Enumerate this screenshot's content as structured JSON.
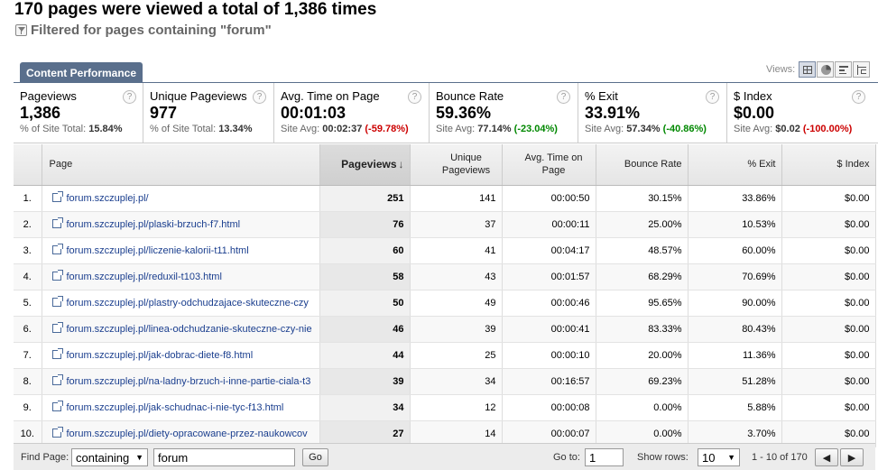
{
  "header": {
    "title": "170 pages were viewed a total of 1,386 times",
    "filter": "Filtered for pages containing \"forum\""
  },
  "tab": {
    "label": "Content Performance"
  },
  "views": {
    "label": "Views:",
    "options": [
      "table-icon",
      "pie-icon",
      "bar-icon",
      "tree-icon"
    ],
    "active": "table-icon"
  },
  "metrics": [
    {
      "name": "Pageviews",
      "value": "1,386",
      "sub_label": "% of Site Total:",
      "sub_value": "15.84%",
      "delta": ""
    },
    {
      "name": "Unique Pageviews",
      "value": "977",
      "sub_label": "% of Site Total:",
      "sub_value": "13.34%",
      "delta": ""
    },
    {
      "name": "Avg. Time on Page",
      "value": "00:01:03",
      "sub_label": "Site Avg:",
      "sub_value": "00:02:37",
      "delta": "(-59.78%)"
    },
    {
      "name": "Bounce Rate",
      "value": "59.36%",
      "sub_label": "Site Avg:",
      "sub_value": "77.14%",
      "delta": "(-23.04%)"
    },
    {
      "name": "% Exit",
      "value": "33.91%",
      "sub_label": "Site Avg:",
      "sub_value": "57.34%",
      "delta": "(-40.86%)"
    },
    {
      "name": "$ Index",
      "value": "$0.00",
      "sub_label": "Site Avg:",
      "sub_value": "$0.02",
      "delta": "(-100.00%)"
    }
  ],
  "table": {
    "columns": {
      "page": "Page",
      "pageviews": "Pageviews",
      "unique": "Unique Pageviews",
      "avgtime": "Avg. Time on Page",
      "bounce": "Bounce Rate",
      "exit": "% Exit",
      "index": "$ Index"
    },
    "rows": [
      {
        "n": "1.",
        "page": "forum.szczuplej.pl/",
        "pageviews": "251",
        "unique": "141",
        "avgtime": "00:00:50",
        "bounce": "30.15%",
        "exit": "33.86%",
        "index": "$0.00"
      },
      {
        "n": "2.",
        "page": "forum.szczuplej.pl/plaski-brzuch-f7.html",
        "pageviews": "76",
        "unique": "37",
        "avgtime": "00:00:11",
        "bounce": "25.00%",
        "exit": "10.53%",
        "index": "$0.00"
      },
      {
        "n": "3.",
        "page": "forum.szczuplej.pl/liczenie-kalorii-t11.html",
        "pageviews": "60",
        "unique": "41",
        "avgtime": "00:04:17",
        "bounce": "48.57%",
        "exit": "60.00%",
        "index": "$0.00"
      },
      {
        "n": "4.",
        "page": "forum.szczuplej.pl/reduxil-t103.html",
        "pageviews": "58",
        "unique": "43",
        "avgtime": "00:01:57",
        "bounce": "68.29%",
        "exit": "70.69%",
        "index": "$0.00"
      },
      {
        "n": "5.",
        "page": "forum.szczuplej.pl/plastry-odchudzajace-skuteczne-czy",
        "pageviews": "50",
        "unique": "49",
        "avgtime": "00:00:46",
        "bounce": "95.65%",
        "exit": "90.00%",
        "index": "$0.00"
      },
      {
        "n": "6.",
        "page": "forum.szczuplej.pl/linea-odchudzanie-skuteczne-czy-nie",
        "pageviews": "46",
        "unique": "39",
        "avgtime": "00:00:41",
        "bounce": "83.33%",
        "exit": "80.43%",
        "index": "$0.00"
      },
      {
        "n": "7.",
        "page": "forum.szczuplej.pl/jak-dobrac-diete-f8.html",
        "pageviews": "44",
        "unique": "25",
        "avgtime": "00:00:10",
        "bounce": "20.00%",
        "exit": "11.36%",
        "index": "$0.00"
      },
      {
        "n": "8.",
        "page": "forum.szczuplej.pl/na-ladny-brzuch-i-inne-partie-ciala-t3",
        "pageviews": "39",
        "unique": "34",
        "avgtime": "00:16:57",
        "bounce": "69.23%",
        "exit": "51.28%",
        "index": "$0.00"
      },
      {
        "n": "9.",
        "page": "forum.szczuplej.pl/jak-schudnac-i-nie-tyc-f13.html",
        "pageviews": "34",
        "unique": "12",
        "avgtime": "00:00:08",
        "bounce": "0.00%",
        "exit": "5.88%",
        "index": "$0.00"
      },
      {
        "n": "10.",
        "page": "forum.szczuplej.pl/diety-opracowane-przez-naukowcov",
        "pageviews": "27",
        "unique": "14",
        "avgtime": "00:00:07",
        "bounce": "0.00%",
        "exit": "3.70%",
        "index": "$0.00"
      }
    ]
  },
  "footer": {
    "find_label": "Find Page:",
    "match_mode": "containing",
    "search_value": "forum",
    "go_button": "Go",
    "goto_label": "Go to:",
    "goto_value": "1",
    "show_rows_label": "Show rows:",
    "show_rows_value": "10",
    "range": "1 - 10 of 170",
    "prev_icon": "prev-arrow-icon",
    "next_icon": "next-arrow-icon"
  }
}
